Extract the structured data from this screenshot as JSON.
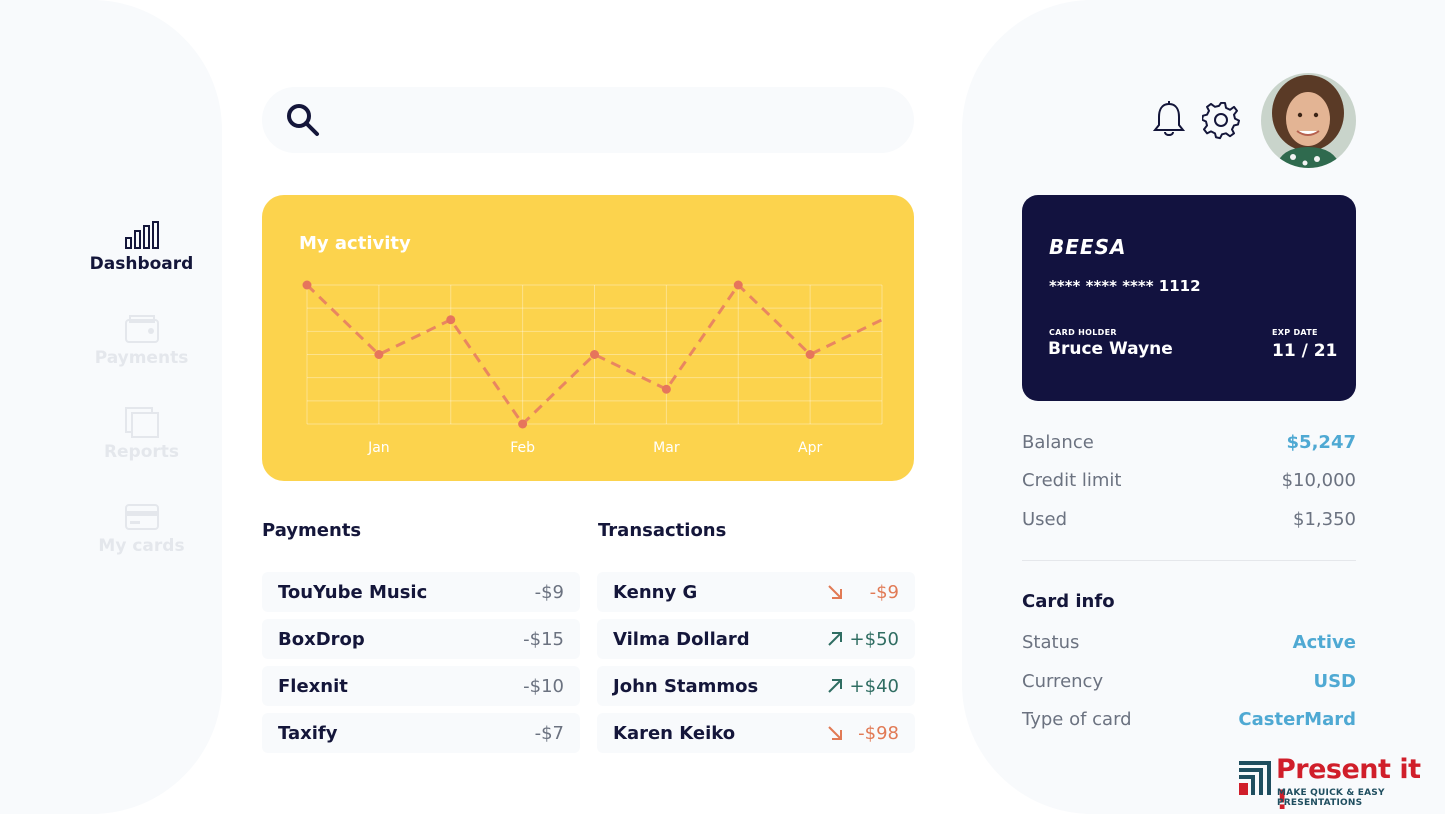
{
  "nav": [
    {
      "label": "Dashboard",
      "icon": "bar-chart-icon",
      "active": true
    },
    {
      "label": "Payments",
      "icon": "wallet-icon",
      "active": false
    },
    {
      "label": "Reports",
      "icon": "reports-icon",
      "active": false
    },
    {
      "label": "My cards",
      "icon": "credit-card-icon",
      "active": false
    }
  ],
  "search": {
    "placeholder": ""
  },
  "header": {
    "icons": [
      "bell-icon",
      "gear-icon"
    ],
    "avatar": "avatar"
  },
  "activity": {
    "title": "My activity"
  },
  "chart_data": {
    "type": "line",
    "title": "My activity",
    "x_ticks": [
      "Jan",
      "Feb",
      "Mar",
      "Apr"
    ],
    "values": [
      4,
      2,
      3,
      0,
      2,
      1,
      4,
      2,
      3
    ],
    "ylim": [
      0,
      4
    ],
    "grid": true,
    "line_style": "dashed",
    "line_color": "#e98660",
    "marker_color": "#e6755c"
  },
  "payments": {
    "title": "Payments",
    "rows": [
      {
        "name": "TouYube  Music",
        "amount": "-$9"
      },
      {
        "name": "BoxDrop",
        "amount": "-$15"
      },
      {
        "name": "Flexnit",
        "amount": "-$10"
      },
      {
        "name": "Taxify",
        "amount": "-$7"
      }
    ]
  },
  "transactions": {
    "title": "Transactions",
    "rows": [
      {
        "name": "Kenny G",
        "amount": "-$9",
        "direction": "down"
      },
      {
        "name": "Vilma Dollard",
        "amount": "+$50",
        "direction": "up"
      },
      {
        "name": "John Stammos",
        "amount": "+$40",
        "direction": "up"
      },
      {
        "name": "Karen Keiko",
        "amount": "-$98",
        "direction": "down"
      }
    ]
  },
  "card": {
    "brand": "BEESA",
    "number": "**** **** **** 1112",
    "holder_label": "CARD HOLDER",
    "holder": "Bruce Wayne",
    "exp_label": "EXP DATE",
    "exp": "11 / 21"
  },
  "summary": {
    "balance_label": "Balance",
    "balance": "$5,247",
    "credit_label": "Credit limit",
    "credit": "$10,000",
    "used_label": "Used",
    "used": "$1,350"
  },
  "card_info": {
    "title": "Card info",
    "status_label": "Status",
    "status": "Active",
    "currency_label": "Currency",
    "currency": "USD",
    "type_label": "Type of card",
    "type": "CasterMard"
  },
  "branding": {
    "title": "Present it !",
    "subtitle": "MAKE QUICK & EASY PRESENTATIONS"
  },
  "colors": {
    "accent": "#fcd34d",
    "navy": "#12123f",
    "blue": "#4fa9d3",
    "negative": "#e17a55",
    "positive": "#2f6d62"
  }
}
